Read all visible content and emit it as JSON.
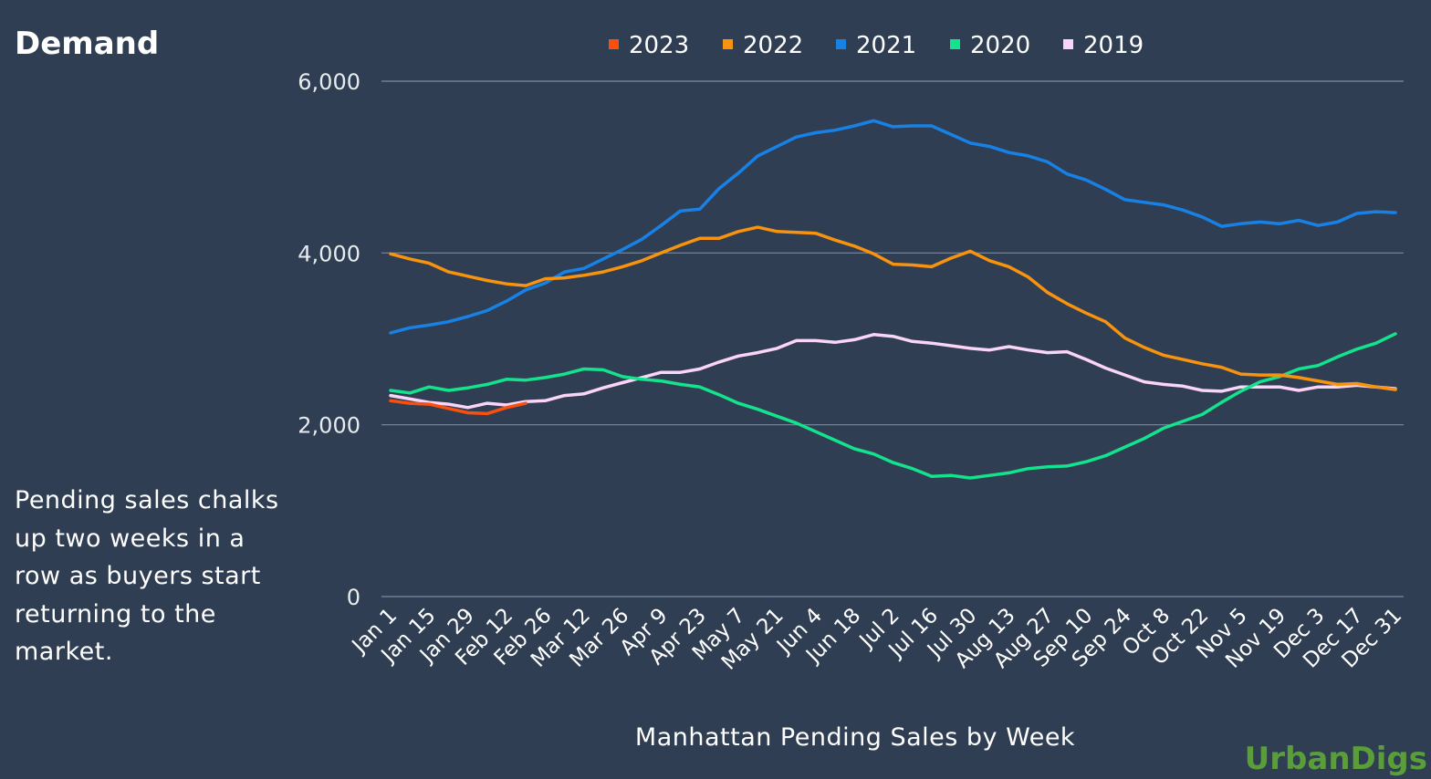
{
  "header": {
    "title": "Demand"
  },
  "description": "Pending sales chalks up two weeks in a row as buyers start returning to the market.",
  "brand": "UrbanDigs",
  "chart_data": {
    "type": "line",
    "title": "Demand",
    "xlabel": "Manhattan Pending Sales by Week",
    "ylabel": "",
    "ylim": [
      0,
      6000
    ],
    "yticks": [
      0,
      2000,
      4000,
      6000
    ],
    "ytick_labels": [
      "0",
      "2,000",
      "4,000",
      "6,000"
    ],
    "xtick_labels": [
      "Jan 1",
      "Jan 15",
      "Jan 29",
      "Feb 12",
      "Feb 26",
      "Mar 12",
      "Mar 26",
      "Apr 9",
      "Apr 23",
      "May 7",
      "May 21",
      "Jun 4",
      "Jun 18",
      "Jul 2",
      "Jul 16",
      "Jul 30",
      "Aug 13",
      "Aug 27",
      "Sep 10",
      "Sep 24",
      "Oct 8",
      "Oct 22",
      "Nov 5",
      "Nov 19",
      "Dec 3",
      "Dec 17",
      "Dec 31"
    ],
    "grid": true,
    "legend_position": "top",
    "series": [
      {
        "name": "2023",
        "color": "#fc4f0e",
        "values": [
          2280,
          2250,
          2240,
          2190,
          2140,
          2130,
          2200,
          2250
        ]
      },
      {
        "name": "2022",
        "color": "#f7930e",
        "values": [
          3990,
          3930,
          3880,
          3780,
          3730,
          3680,
          3640,
          3620,
          3700,
          3710,
          3740,
          3780,
          3840,
          3910,
          4000,
          4090,
          4170,
          4170,
          4250,
          4300,
          4250,
          4240,
          4230,
          4150,
          4080,
          3990,
          3870,
          3860,
          3840,
          3940,
          4020,
          3910,
          3840,
          3720,
          3540,
          3410,
          3300,
          3200,
          3010,
          2900,
          2810,
          2760,
          2710,
          2670,
          2590,
          2580,
          2580,
          2550,
          2510,
          2470,
          2480,
          2440,
          2410
        ]
      },
      {
        "name": "2021",
        "color": "#1881e6",
        "values": [
          3070,
          3130,
          3160,
          3200,
          3260,
          3330,
          3440,
          3570,
          3650,
          3780,
          3820,
          3930,
          4040,
          4160,
          4320,
          4490,
          4510,
          4750,
          4930,
          5130,
          5240,
          5350,
          5400,
          5430,
          5480,
          5540,
          5470,
          5480,
          5480,
          5380,
          5280,
          5240,
          5170,
          5130,
          5060,
          4920,
          4850,
          4740,
          4620,
          4590,
          4560,
          4500,
          4420,
          4310,
          4340,
          4360,
          4340,
          4380,
          4320,
          4360,
          4460,
          4480,
          4470
        ]
      },
      {
        "name": "2020",
        "color": "#14e38d",
        "values": [
          2400,
          2370,
          2440,
          2400,
          2430,
          2470,
          2530,
          2520,
          2550,
          2590,
          2650,
          2640,
          2560,
          2530,
          2510,
          2470,
          2440,
          2350,
          2250,
          2180,
          2100,
          2020,
          1920,
          1820,
          1720,
          1660,
          1560,
          1490,
          1400,
          1410,
          1380,
          1410,
          1440,
          1490,
          1510,
          1520,
          1570,
          1640,
          1740,
          1840,
          1960,
          2040,
          2120,
          2260,
          2390,
          2500,
          2560,
          2650,
          2690,
          2790,
          2880,
          2950,
          3060
        ]
      },
      {
        "name": "2019",
        "color": "#fbd5f7",
        "values": [
          2340,
          2300,
          2260,
          2240,
          2200,
          2250,
          2230,
          2270,
          2280,
          2340,
          2360,
          2430,
          2490,
          2550,
          2610,
          2610,
          2650,
          2730,
          2800,
          2840,
          2890,
          2980,
          2980,
          2960,
          2990,
          3050,
          3030,
          2970,
          2950,
          2920,
          2890,
          2870,
          2910,
          2870,
          2840,
          2850,
          2760,
          2660,
          2580,
          2500,
          2470,
          2450,
          2400,
          2390,
          2440,
          2440,
          2440,
          2400,
          2440,
          2440,
          2460,
          2440,
          2420
        ]
      }
    ]
  }
}
